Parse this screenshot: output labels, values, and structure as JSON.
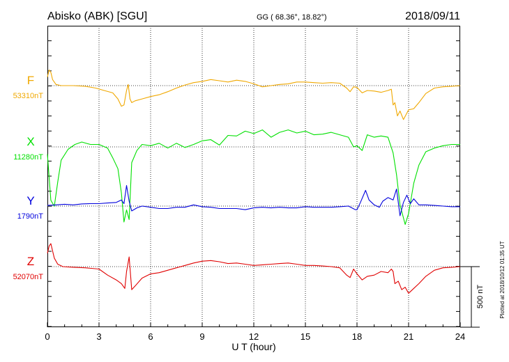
{
  "header": {
    "station": "Abisko (ABK)  [SGU]",
    "coords": "GG ( 68.36°,  18.82°)",
    "date": "2018/09/11"
  },
  "footer": {
    "plotted_note": "Plotted at 2018/10/12 01:35 UT"
  },
  "chart_data": {
    "type": "line",
    "xlabel": "U T (hour)",
    "xlim": [
      0,
      24
    ],
    "x_ticks": [
      "0",
      "3",
      "6",
      "9",
      "12",
      "15",
      "18",
      "21",
      "24"
    ],
    "scale_bar_label": "500 nT",
    "series": [
      {
        "name": "F",
        "baseline_label": "53310nT",
        "baseline": 53310,
        "color": "#f0a800",
        "x": [
          0,
          0.1,
          0.2,
          0.3,
          0.5,
          0.8,
          1.5,
          2.2,
          2.8,
          3.3,
          3.8,
          4.1,
          4.3,
          4.45,
          4.6,
          4.7,
          4.8,
          4.9,
          5.1,
          5.5,
          6,
          6.5,
          7,
          7.5,
          8,
          8.5,
          9,
          9.5,
          10,
          10.5,
          11,
          11.5,
          12,
          12.5,
          13,
          13.5,
          14,
          14.5,
          15,
          15.5,
          16,
          16.5,
          17,
          17.4,
          17.6,
          17.8,
          18,
          18.3,
          18.6,
          19,
          19.4,
          19.8,
          20,
          20.1,
          20.2,
          20.35,
          20.5,
          20.7,
          21,
          21.3,
          21.6,
          22,
          22.5,
          23,
          23.5,
          24
        ],
        "values": [
          53380,
          53440,
          53420,
          53360,
          53320,
          53310,
          53310,
          53305,
          53290,
          53270,
          53250,
          53200,
          53140,
          53150,
          53270,
          53320,
          53200,
          53170,
          53185,
          53200,
          53220,
          53235,
          53260,
          53290,
          53315,
          53335,
          53345,
          53360,
          53350,
          53340,
          53355,
          53345,
          53325,
          53300,
          53310,
          53320,
          53325,
          53340,
          53340,
          53335,
          53330,
          53335,
          53330,
          53290,
          53260,
          53300,
          53295,
          53250,
          53270,
          53265,
          53255,
          53270,
          53280,
          53150,
          53170,
          53060,
          53100,
          53030,
          53110,
          53120,
          53170,
          53245,
          53290,
          53300,
          53305,
          53310
        ]
      },
      {
        "name": "X",
        "baseline_label": "11280nT",
        "baseline": 11280,
        "color": "#00e000",
        "x": [
          0,
          0.2,
          0.4,
          0.6,
          0.8,
          1.2,
          1.6,
          2,
          2.5,
          3,
          3.5,
          3.8,
          4.1,
          4.3,
          4.45,
          4.6,
          4.75,
          4.9,
          5.2,
          5.5,
          6,
          6.5,
          7,
          7.5,
          8,
          8.5,
          9,
          9.5,
          10,
          10.5,
          11,
          11.5,
          12,
          12.5,
          13,
          13.5,
          14,
          14.5,
          15,
          15.5,
          16,
          16.5,
          17,
          17.5,
          17.8,
          18,
          18.3,
          18.6,
          19,
          19.4,
          19.8,
          20.1,
          20.3,
          20.5,
          20.8,
          21,
          21.3,
          21.6,
          22,
          22.5,
          23,
          23.5,
          24
        ],
        "values": [
          11220,
          10840,
          10790,
          10990,
          11170,
          11260,
          11300,
          11320,
          11300,
          11300,
          11270,
          11190,
          11100,
          10900,
          10660,
          10760,
          10680,
          11150,
          11250,
          11300,
          11290,
          11310,
          11270,
          11310,
          11275,
          11300,
          11330,
          11340,
          11295,
          11375,
          11370,
          11410,
          11390,
          11420,
          11360,
          11400,
          11420,
          11395,
          11410,
          11380,
          11385,
          11400,
          11380,
          11360,
          11280,
          11290,
          11250,
          11380,
          11360,
          11370,
          11360,
          11230,
          11050,
          10800,
          10640,
          10730,
          10980,
          11130,
          11240,
          11270,
          11290,
          11300,
          11300
        ]
      },
      {
        "name": "Y",
        "baseline_label": "1790nT",
        "baseline": 1790,
        "color": "#0000dd",
        "x": [
          0,
          0.5,
          1,
          1.5,
          2,
          2.5,
          3,
          3.5,
          4,
          4.3,
          4.45,
          4.6,
          4.75,
          4.9,
          5.2,
          5.5,
          6,
          6.5,
          7,
          7.5,
          8,
          8.5,
          9,
          9.5,
          10,
          10.5,
          11,
          11.5,
          12,
          12.5,
          13,
          13.5,
          14,
          14.5,
          15,
          15.5,
          16,
          16.5,
          17,
          17.5,
          17.9,
          18,
          18.2,
          18.5,
          18.7,
          19,
          19.3,
          19.5,
          19.8,
          20.1,
          20.3,
          20.5,
          20.7,
          20.9,
          21.1,
          21.3,
          21.6,
          22,
          22.5,
          23,
          23.5,
          24
        ],
        "values": [
          1795,
          1800,
          1805,
          1800,
          1808,
          1810,
          1810,
          1815,
          1820,
          1840,
          1810,
          1960,
          1830,
          1750,
          1775,
          1790,
          1780,
          1770,
          1770,
          1780,
          1780,
          1800,
          1785,
          1780,
          1770,
          1770,
          1770,
          1760,
          1775,
          1780,
          1775,
          1780,
          1775,
          1775,
          1785,
          1780,
          1780,
          1780,
          1785,
          1790,
          1760,
          1760,
          1820,
          1920,
          1840,
          1800,
          1780,
          1830,
          1860,
          1840,
          1930,
          1710,
          1820,
          1880,
          1810,
          1850,
          1800,
          1800,
          1795,
          1790,
          1785,
          1785
        ]
      },
      {
        "name": "Z",
        "baseline_label": "52070nT",
        "baseline": 52070,
        "color": "#e00000",
        "x": [
          0,
          0.1,
          0.2,
          0.3,
          0.4,
          0.6,
          0.9,
          1.5,
          2.2,
          3,
          3.5,
          4,
          4.3,
          4.5,
          4.6,
          4.75,
          4.9,
          5.1,
          5.5,
          6,
          6.5,
          7,
          7.5,
          8,
          8.5,
          9,
          9.5,
          10,
          10.5,
          11,
          11.5,
          12,
          12.5,
          13,
          13.5,
          14,
          14.5,
          15,
          15.5,
          16,
          16.5,
          17,
          17.4,
          17.6,
          17.8,
          18,
          18.3,
          18.6,
          19,
          19.4,
          19.8,
          20,
          20.1,
          20.2,
          20.4,
          20.6,
          20.8,
          21,
          21.3,
          21.6,
          22,
          22.5,
          23,
          23.5,
          24
        ],
        "values": [
          52180,
          52240,
          52260,
          52200,
          52140,
          52090,
          52070,
          52065,
          52060,
          52050,
          52000,
          51960,
          51930,
          51890,
          52030,
          52150,
          51880,
          51910,
          51975,
          52010,
          52020,
          52040,
          52060,
          52080,
          52100,
          52115,
          52120,
          52110,
          52095,
          52100,
          52090,
          52080,
          52085,
          52090,
          52095,
          52100,
          52090,
          52080,
          52080,
          52075,
          52070,
          52060,
          52000,
          51980,
          52050,
          52010,
          51960,
          51990,
          52000,
          52030,
          52020,
          52050,
          52030,
          51930,
          51950,
          51880,
          51900,
          51850,
          51890,
          51930,
          51990,
          52040,
          52060,
          52065,
          52070
        ]
      }
    ]
  }
}
